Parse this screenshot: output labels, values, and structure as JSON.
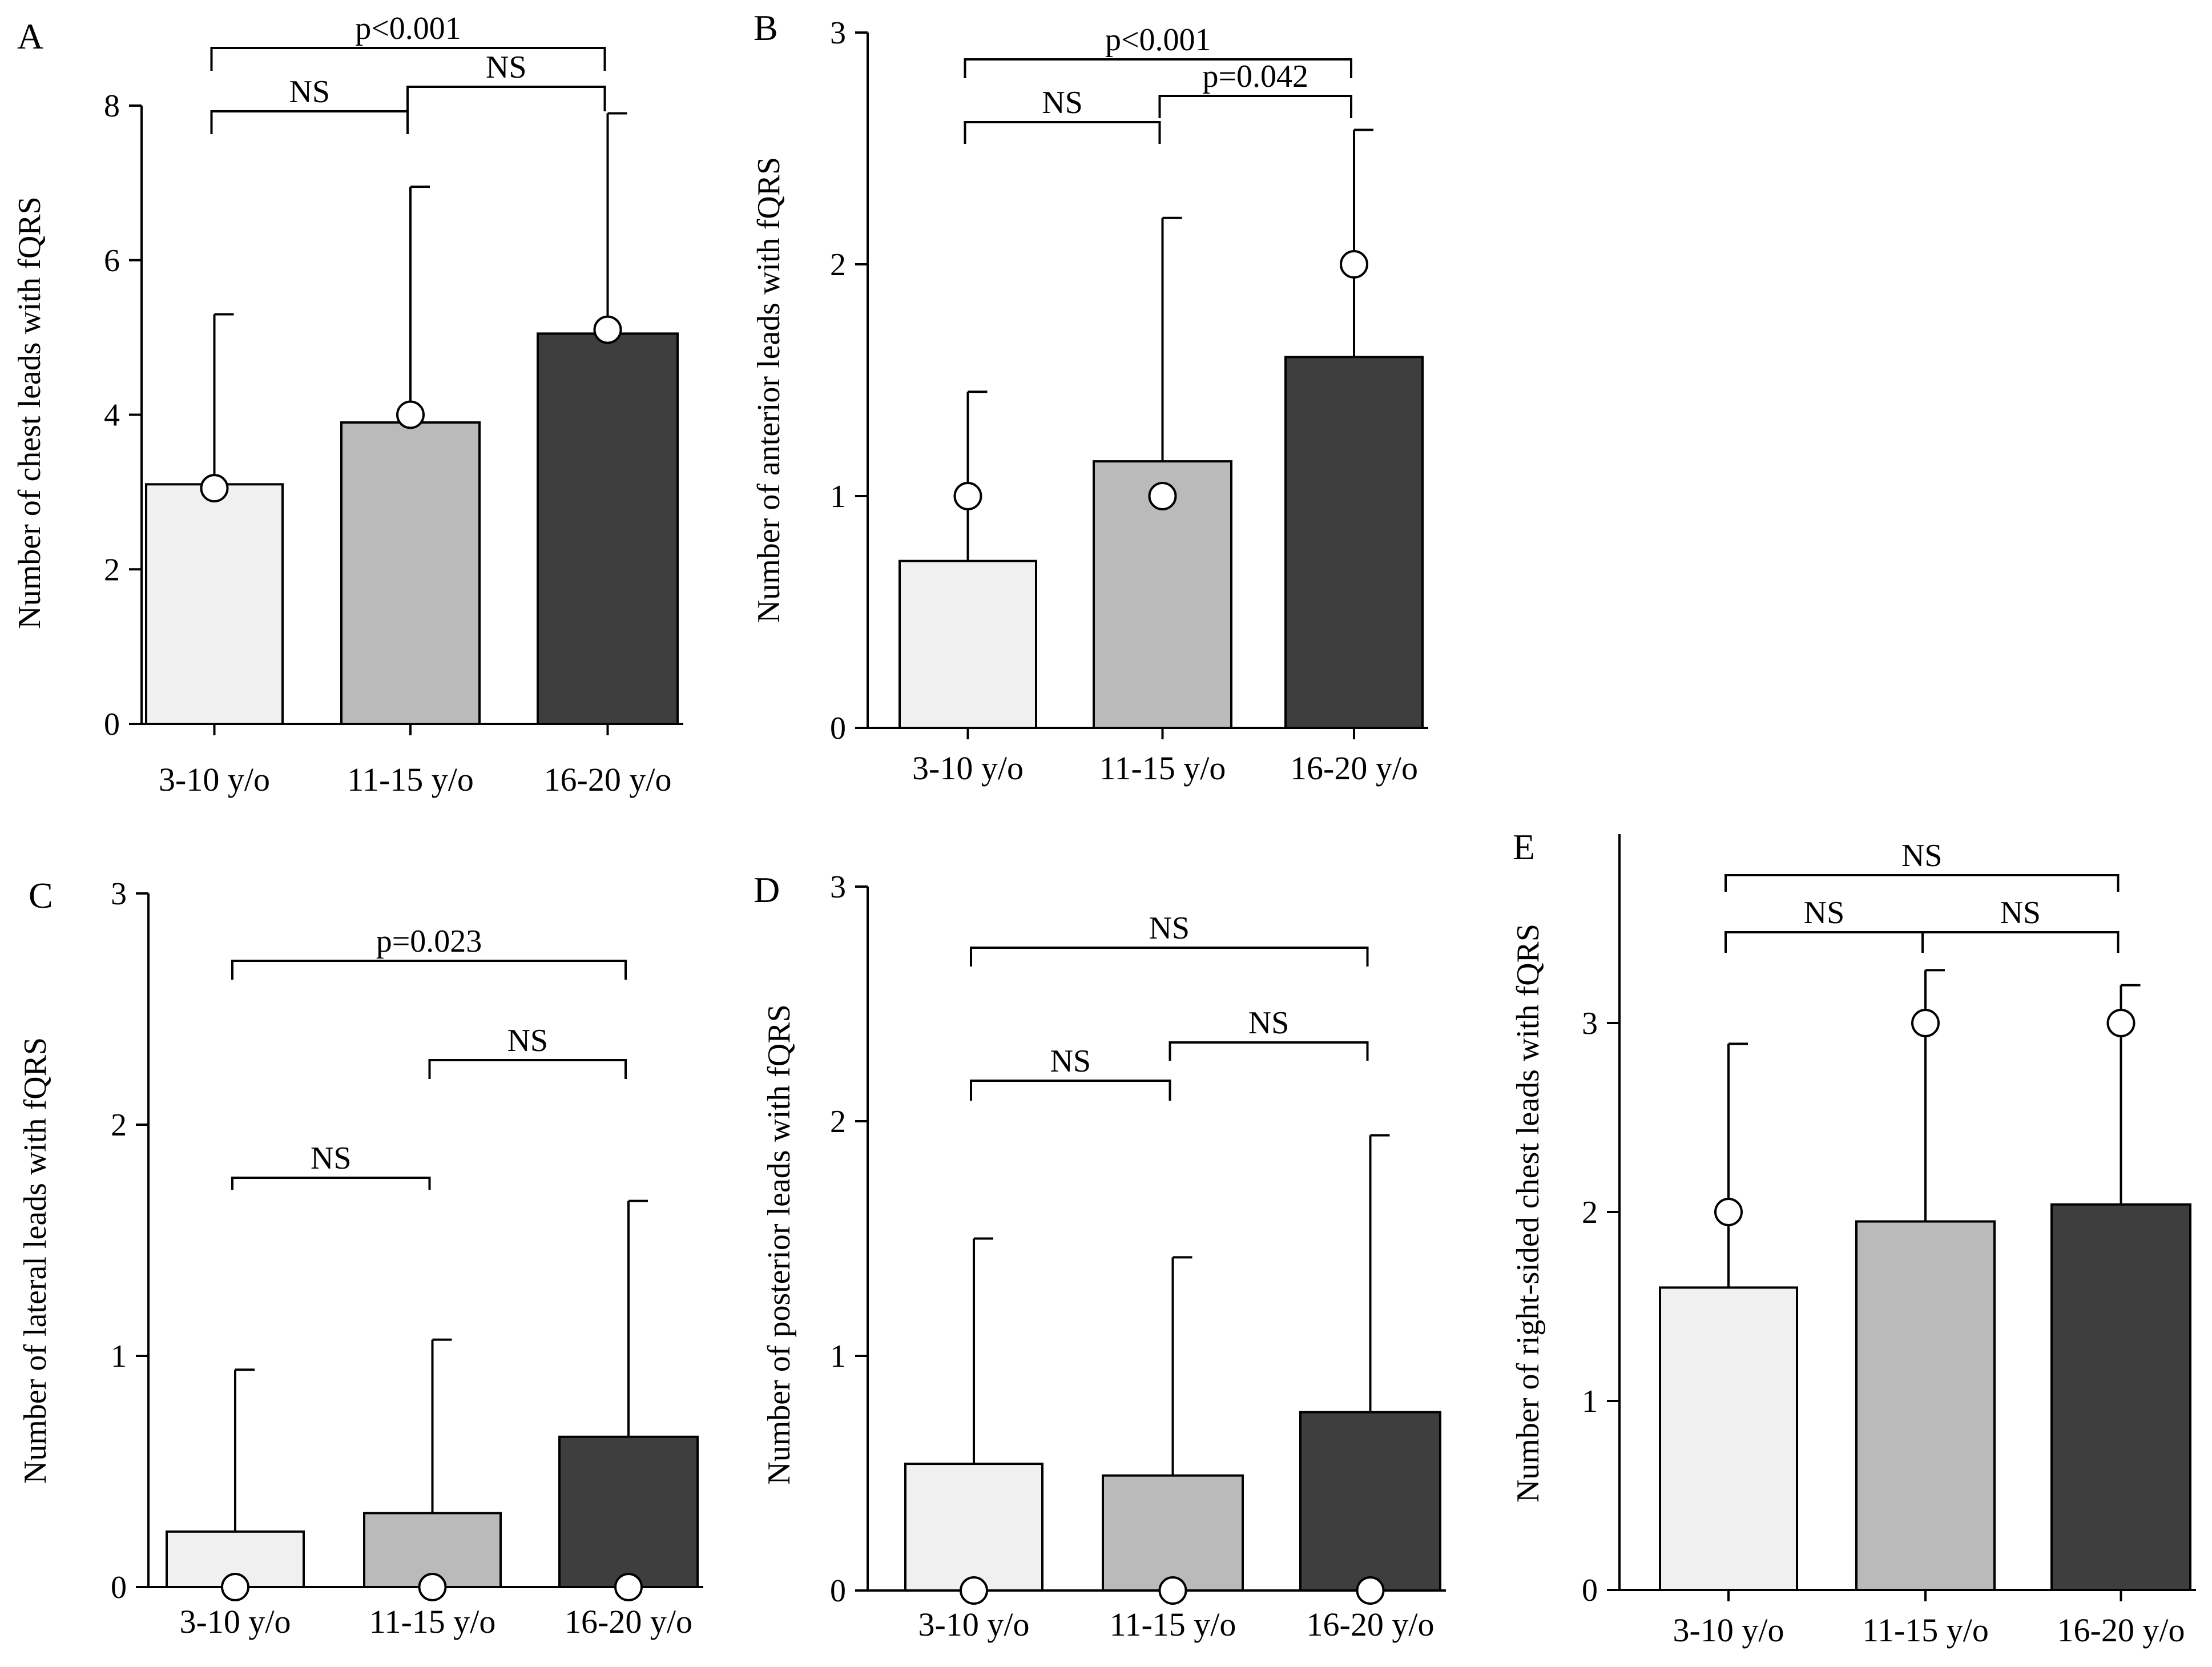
{
  "colors": {
    "group1": "#f0f0f0",
    "group2": "#bababa",
    "group3": "#3e3e3e",
    "axis": "#000000",
    "median_marker_fill": "#ffffff"
  },
  "chart_data": [
    {
      "panel": "A",
      "type": "bar",
      "categories": [
        "3-10 y/o",
        "11-15 y/o",
        "16-20 y/o"
      ],
      "values": [
        3.1,
        3.9,
        5.05
      ],
      "error_upper": [
        5.3,
        6.95,
        7.9
      ],
      "medians": [
        3.05,
        4.0,
        5.1
      ],
      "ylabel": "Number of chest leads with fQRS",
      "ylim": [
        0,
        8
      ],
      "yticks": [
        0,
        2,
        4,
        6,
        8
      ],
      "ytick_labels": [
        "0",
        "2",
        "4",
        "6",
        "8"
      ],
      "comparisons": [
        {
          "groups": [
            0,
            1
          ],
          "label": "NS"
        },
        {
          "groups": [
            1,
            2
          ],
          "label": "NS"
        },
        {
          "groups": [
            0,
            2
          ],
          "label": "p<0.001"
        }
      ]
    },
    {
      "panel": "B",
      "type": "bar",
      "categories": [
        "3-10 y/o",
        "11-15 y/o",
        "16-20 y/o"
      ],
      "values": [
        0.72,
        1.15,
        1.6
      ],
      "error_upper": [
        1.45,
        2.2,
        2.58
      ],
      "medians": [
        1.0,
        1.0,
        2.0
      ],
      "ylabel": "Number of anterior leads with fQRS",
      "ylim": [
        0,
        3
      ],
      "yticks": [
        0,
        1,
        2,
        3
      ],
      "ytick_labels": [
        "0",
        "1",
        "2",
        "3"
      ],
      "comparisons": [
        {
          "groups": [
            0,
            1
          ],
          "label": "NS"
        },
        {
          "groups": [
            1,
            2
          ],
          "label": "p=0.042"
        },
        {
          "groups": [
            0,
            2
          ],
          "label": "p<0.001"
        }
      ]
    },
    {
      "panel": "C",
      "type": "bar",
      "categories": [
        "3-10 y/o",
        "11-15 y/o",
        "16-20 y/o"
      ],
      "values": [
        0.24,
        0.32,
        0.65
      ],
      "error_upper": [
        0.94,
        1.07,
        1.67
      ],
      "medians": [
        0,
        0,
        0
      ],
      "ylabel": "Number of lateral leads with fQRS",
      "ylim": [
        0,
        3
      ],
      "yticks": [
        0,
        1,
        2,
        3
      ],
      "ytick_labels": [
        "0",
        "1",
        "2",
        "3"
      ],
      "comparisons": [
        {
          "groups": [
            0,
            1
          ],
          "label": "NS"
        },
        {
          "groups": [
            1,
            2
          ],
          "label": "NS"
        },
        {
          "groups": [
            0,
            2
          ],
          "label": "p=0.023"
        }
      ]
    },
    {
      "panel": "D",
      "type": "bar",
      "categories": [
        "3-10 y/o",
        "11-15 y/o",
        "16-20 y/o"
      ],
      "values": [
        0.54,
        0.49,
        0.76
      ],
      "error_upper": [
        1.5,
        1.42,
        1.94
      ],
      "medians": [
        0,
        0,
        0
      ],
      "ylabel": "Number of posterior leads with fQRS",
      "ylim": [
        0,
        3
      ],
      "yticks": [
        0,
        1,
        2,
        3
      ],
      "ytick_labels": [
        "0",
        "1",
        "2",
        "3"
      ],
      "comparisons": [
        {
          "groups": [
            0,
            1
          ],
          "label": "NS"
        },
        {
          "groups": [
            1,
            2
          ],
          "label": "NS"
        },
        {
          "groups": [
            0,
            2
          ],
          "label": "NS"
        }
      ]
    },
    {
      "panel": "E",
      "type": "bar",
      "categories": [
        "3-10 y/o",
        "11-15 y/o",
        "16-20 y/o"
      ],
      "values": [
        1.6,
        1.95,
        2.04
      ],
      "error_upper": [
        2.89,
        3.28,
        3.2
      ],
      "medians": [
        2.0,
        3.0,
        3.0
      ],
      "ylabel": "Number of right-sided chest leads with fQRS",
      "ylim": [
        0,
        4
      ],
      "yticks": [
        0,
        1,
        2,
        3
      ],
      "ytick_labels": [
        "0",
        "1",
        "2",
        "3"
      ],
      "comparisons": [
        {
          "groups": [
            0,
            1
          ],
          "label": "NS"
        },
        {
          "groups": [
            1,
            2
          ],
          "label": "NS"
        },
        {
          "groups": [
            0,
            2
          ],
          "label": "NS"
        }
      ]
    }
  ]
}
